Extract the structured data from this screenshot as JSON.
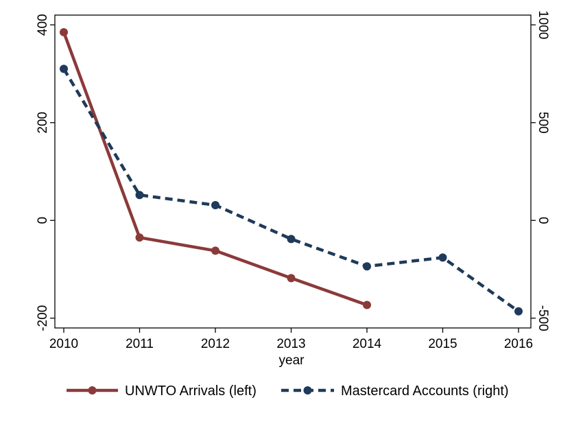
{
  "chart_data": {
    "type": "line",
    "xlabel": "year",
    "x": [
      2010,
      2011,
      2012,
      2013,
      2014,
      2015,
      2016
    ],
    "x_ticks": [
      "2010",
      "2011",
      "2012",
      "2013",
      "2014",
      "2015",
      "2016"
    ],
    "ylim_left": [
      -220,
      420
    ],
    "yticks_left": [
      "400",
      "200",
      "0",
      "-200"
    ],
    "ylim_right": [
      -550,
      1050
    ],
    "yticks_right": [
      "1000",
      "500",
      "0",
      "-500"
    ],
    "grid": false,
    "legend_placement": "bottom",
    "series": [
      {
        "name": "UNWTO Arrivals (left)",
        "axis": "left",
        "style": "solid",
        "color": "#8b3a3a",
        "x": [
          2010,
          2011,
          2012,
          2013,
          2014
        ],
        "values": [
          385,
          -35,
          -62,
          -118,
          -173
        ]
      },
      {
        "name": "Mastercard Accounts (right)",
        "axis": "right",
        "style": "dashed",
        "color": "#1f3a5a",
        "x": [
          2010,
          2011,
          2012,
          2013,
          2014,
          2015,
          2016
        ],
        "values": [
          775,
          130,
          78,
          -95,
          -235,
          -190,
          -465
        ]
      }
    ]
  }
}
